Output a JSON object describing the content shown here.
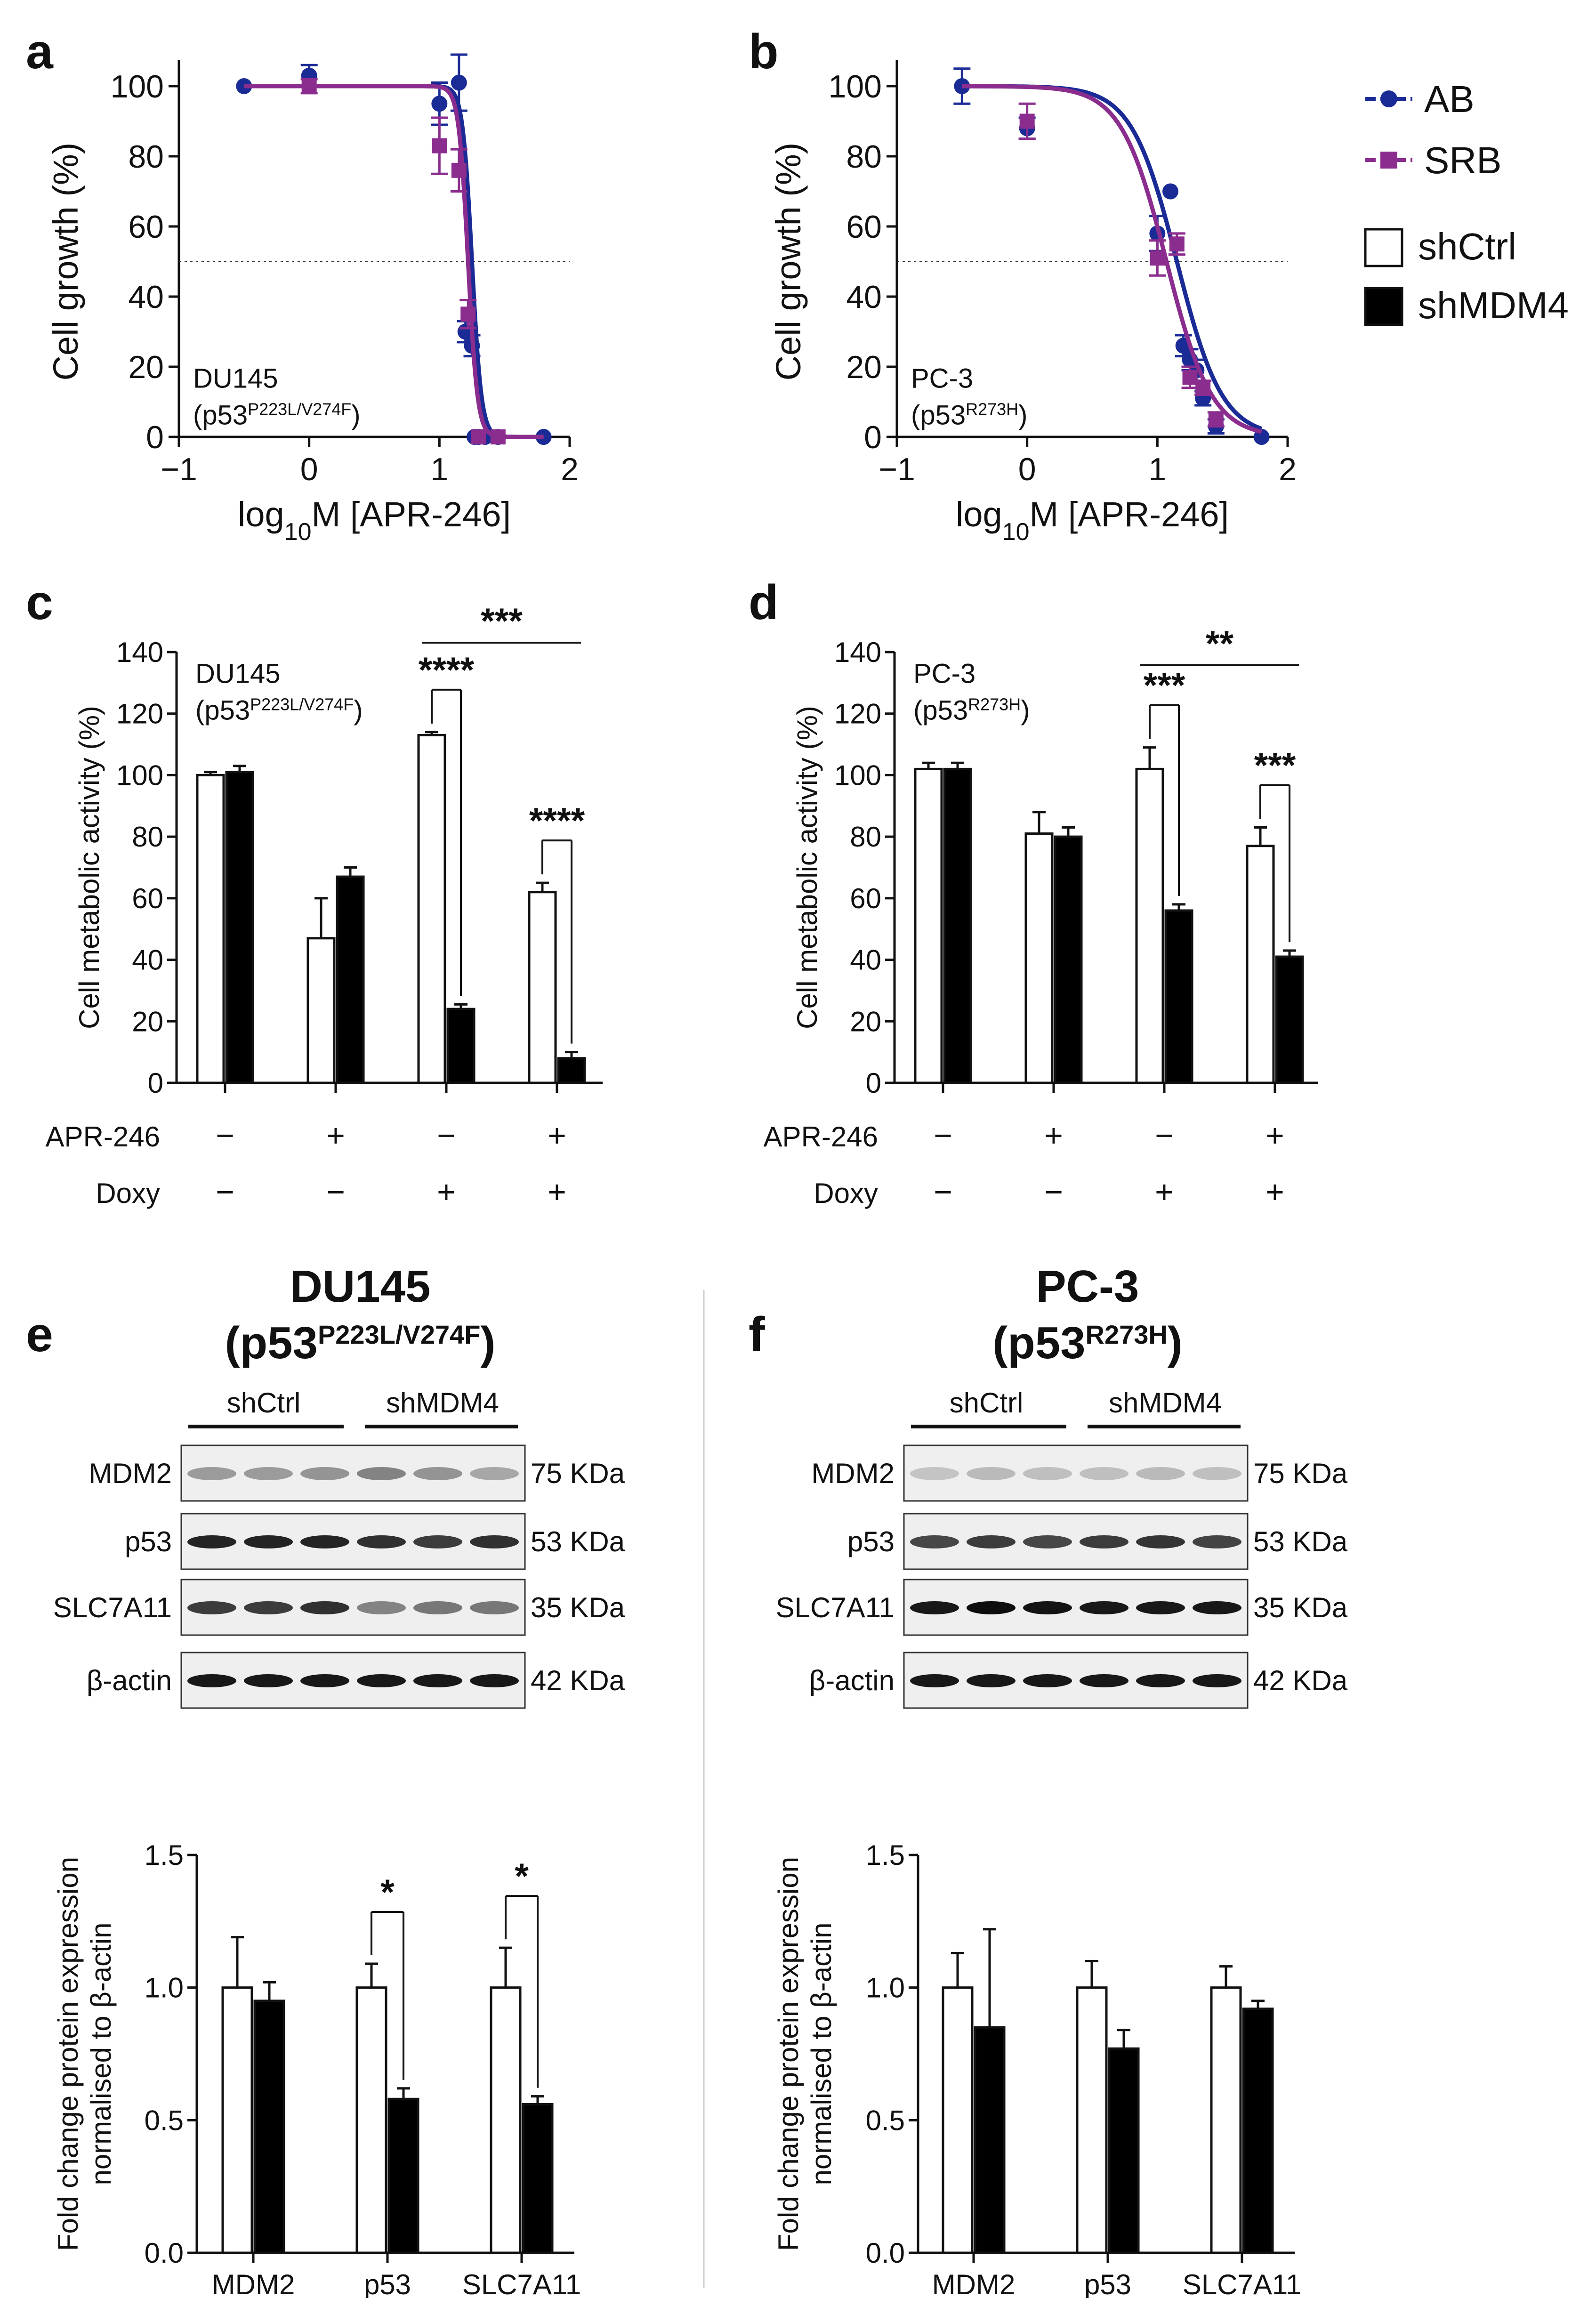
{
  "chart_data": [
    {
      "panel": "a",
      "type": "line",
      "cell_line_name": "DU145",
      "cell_line_mut": "P223L/V274F",
      "xlabel_pre": "log",
      "xlabel_sub": "10",
      "xlabel_post": "M [APR-246]",
      "ylabel": "Cell growth (%)",
      "xlim": [
        -1,
        2
      ],
      "ylim": [
        0,
        100
      ],
      "xticks": [
        -1,
        0,
        1,
        2
      ],
      "yticks": [
        0,
        20,
        40,
        60,
        80,
        100
      ],
      "xtick_labels": [
        "−1",
        "0",
        "1",
        "2"
      ],
      "reference_line_y": 50,
      "series": [
        {
          "name": "AB",
          "color": "#1b2b96",
          "marker": "circle",
          "x": [
            -0.5,
            0,
            1,
            1.15,
            1.2,
            1.25,
            1.27,
            1.3,
            1.35,
            1.45,
            1.8
          ],
          "y": [
            100,
            103,
            95,
            101,
            30,
            26,
            0,
            0,
            0,
            0,
            0
          ],
          "err": [
            0,
            3,
            6,
            8,
            3,
            3,
            0,
            0,
            0,
            0,
            0
          ],
          "ic50": 1.25,
          "hill": 12
        },
        {
          "name": "SRB",
          "color": "#8b2d8e",
          "marker": "square",
          "x": [
            0,
            1,
            1.15,
            1.22,
            1.3,
            1.45
          ],
          "y": [
            100,
            83,
            76,
            35,
            0,
            0
          ],
          "err": [
            2,
            8,
            6,
            4,
            0,
            0
          ],
          "ic50": 1.22,
          "hill": 12
        }
      ]
    },
    {
      "panel": "b",
      "type": "line",
      "cell_line_name": "PC-3",
      "cell_line_mut": "R273H",
      "xlabel_pre": "log",
      "xlabel_sub": "10",
      "xlabel_post": "M [APR-246]",
      "ylabel": "Cell growth (%)",
      "xlim": [
        -1,
        2
      ],
      "ylim": [
        0,
        100
      ],
      "xticks": [
        -1,
        0,
        1,
        2
      ],
      "yticks": [
        0,
        20,
        40,
        60,
        80,
        100
      ],
      "xtick_labels": [
        "−1",
        "0",
        "1",
        "2"
      ],
      "reference_line_y": 50,
      "series": [
        {
          "name": "AB",
          "color": "#1b2b96",
          "marker": "circle",
          "x": [
            -0.5,
            0,
            1,
            1.1,
            1.2,
            1.25,
            1.3,
            1.35,
            1.45,
            1.8
          ],
          "y": [
            100,
            88,
            58,
            70,
            26,
            22,
            19,
            11,
            3,
            0
          ],
          "err": [
            5,
            3,
            5,
            0,
            3,
            3,
            3,
            2,
            2,
            0
          ],
          "ic50": 1.15,
          "hill": 2.5
        },
        {
          "name": "SRB",
          "color": "#8b2d8e",
          "marker": "square",
          "x": [
            0,
            1,
            1.15,
            1.25,
            1.35,
            1.45
          ],
          "y": [
            90,
            51,
            55,
            17,
            14,
            5
          ],
          "err": [
            5,
            5,
            3,
            3,
            2,
            2
          ],
          "ic50": 1.07,
          "hill": 2.5
        }
      ]
    },
    {
      "panel": "c",
      "type": "bar",
      "cell_line_name": "DU145",
      "cell_line_mut": "P223L/V274F",
      "ylabel": "Cell metabolic activity (%)",
      "ylim": [
        0,
        140
      ],
      "yticks": [
        0,
        20,
        40,
        60,
        80,
        100,
        120,
        140
      ],
      "row_labels": [
        "APR-246",
        "Doxy"
      ],
      "conditions": [
        {
          "apr": "−",
          "doxy": "−"
        },
        {
          "apr": "+",
          "doxy": "−"
        },
        {
          "apr": "−",
          "doxy": "+"
        },
        {
          "apr": "+",
          "doxy": "+"
        }
      ],
      "series": [
        {
          "name": "shCtrl",
          "values": [
            100,
            47,
            113,
            62
          ],
          "err": [
            1,
            13,
            1,
            3
          ]
        },
        {
          "name": "shMDM4",
          "values": [
            101,
            67,
            24,
            8
          ],
          "err": [
            2,
            3,
            1.5,
            2
          ]
        }
      ],
      "sig": [
        {
          "type": "pair",
          "group": 2,
          "label": "****"
        },
        {
          "type": "pair",
          "group": 3,
          "label": "****"
        },
        {
          "type": "span",
          "from": 2,
          "to": 3,
          "label": "***"
        }
      ]
    },
    {
      "panel": "d",
      "type": "bar",
      "cell_line_name": "PC-3",
      "cell_line_mut": "R273H",
      "ylabel": "Cell metabolic activity (%)",
      "ylim": [
        0,
        140
      ],
      "yticks": [
        0,
        20,
        40,
        60,
        80,
        100,
        120,
        140
      ],
      "row_labels": [
        "APR-246",
        "Doxy"
      ],
      "conditions": [
        {
          "apr": "−",
          "doxy": "−"
        },
        {
          "apr": "+",
          "doxy": "−"
        },
        {
          "apr": "−",
          "doxy": "+"
        },
        {
          "apr": "+",
          "doxy": "+"
        }
      ],
      "series": [
        {
          "name": "shCtrl",
          "values": [
            102,
            81,
            102,
            77
          ],
          "err": [
            2,
            7,
            7,
            6
          ]
        },
        {
          "name": "shMDM4",
          "values": [
            102,
            80,
            56,
            41
          ],
          "err": [
            2,
            3,
            2,
            2
          ]
        }
      ],
      "sig": [
        {
          "type": "pair",
          "group": 2,
          "label": "***"
        },
        {
          "type": "pair",
          "group": 3,
          "label": "***"
        },
        {
          "type": "span",
          "from": 2,
          "to": 3,
          "label": "**"
        }
      ]
    },
    {
      "panel": "e",
      "type": "bar",
      "ylabel_line1": "Fold change protein expression",
      "ylabel_line2": "normalised to β-actin",
      "ylim": [
        0,
        1.5
      ],
      "yticks": [
        0,
        0.5,
        1,
        1.5
      ],
      "ytick_labels": [
        "0.0",
        "0.5",
        "1.0",
        "1.5"
      ],
      "categories": [
        "MDM2",
        "p53",
        "SLC7A11"
      ],
      "series": [
        {
          "name": "shCtrl",
          "values": [
            1.0,
            1.0,
            1.0
          ],
          "err": [
            0.19,
            0.09,
            0.15
          ]
        },
        {
          "name": "shMDM4",
          "values": [
            0.95,
            0.58,
            0.56
          ],
          "err": [
            0.07,
            0.04,
            0.03
          ]
        }
      ],
      "sig": [
        {
          "type": "pair",
          "group": 1,
          "label": "*"
        },
        {
          "type": "pair",
          "group": 2,
          "label": "*"
        }
      ]
    },
    {
      "panel": "f",
      "type": "bar",
      "ylabel_line1": "Fold change protein expression",
      "ylabel_line2": "normalised to β-actin",
      "ylim": [
        0,
        1.5
      ],
      "yticks": [
        0,
        0.5,
        1,
        1.5
      ],
      "ytick_labels": [
        "0.0",
        "0.5",
        "1.0",
        "1.5"
      ],
      "categories": [
        "MDM2",
        "p53",
        "SLC7A11"
      ],
      "series": [
        {
          "name": "shCtrl",
          "values": [
            1.0,
            1.0,
            1.0
          ],
          "err": [
            0.13,
            0.1,
            0.08
          ]
        },
        {
          "name": "shMDM4",
          "values": [
            0.85,
            0.77,
            0.92
          ],
          "err": [
            0.37,
            0.07,
            0.03
          ]
        }
      ],
      "sig": []
    }
  ],
  "legend": {
    "lines": [
      {
        "name": "AB",
        "color": "#1b2b96",
        "marker": "circle"
      },
      {
        "name": "SRB",
        "color": "#8b2d8e",
        "marker": "square"
      }
    ],
    "bars": [
      {
        "name": "shCtrl",
        "fill": "#ffffff"
      },
      {
        "name": "shMDM4",
        "fill": "#000000"
      }
    ]
  },
  "blots": {
    "e": {
      "title": "DU145",
      "mut_prefix": "(p53",
      "mut": "P223L/V274F",
      "mut_suffix": ")",
      "group1": "shCtrl",
      "group2": "shMDM4",
      "rows": [
        {
          "protein": "MDM2",
          "size": "75 KDa"
        },
        {
          "protein": "p53",
          "size": "53 KDa"
        },
        {
          "protein": "SLC7A11",
          "size": "35 KDa"
        },
        {
          "protein": "β-actin",
          "size": "42 KDa"
        }
      ]
    },
    "f": {
      "title": "PC-3",
      "mut_prefix": "(p53",
      "mut": "R273H",
      "mut_suffix": ")",
      "group1": "shCtrl",
      "group2": "shMDM4",
      "rows": [
        {
          "protein": "MDM2",
          "size": "75 KDa"
        },
        {
          "protein": "p53",
          "size": "53 KDa"
        },
        {
          "protein": "SLC7A11",
          "size": "35 KDa"
        },
        {
          "protein": "β-actin",
          "size": "42 KDa"
        }
      ]
    }
  },
  "panel_letters": [
    "a",
    "b",
    "c",
    "d",
    "e",
    "f"
  ]
}
